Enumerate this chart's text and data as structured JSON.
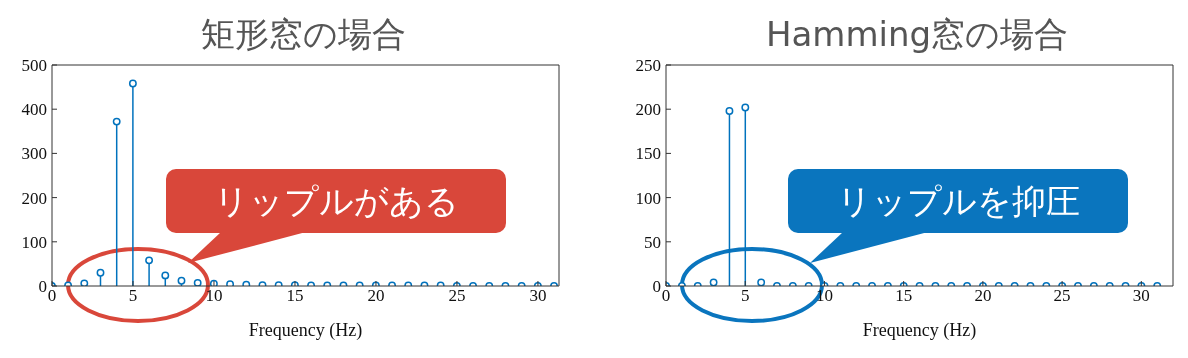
{
  "chart_data": [
    {
      "type": "lollipop",
      "title": "矩形窓の場合",
      "xlabel": "Frequency (Hz)",
      "marker": "circle",
      "x": [
        0,
        1,
        2,
        3,
        4,
        5,
        6,
        7,
        8,
        9,
        10,
        11,
        12,
        13,
        14,
        15,
        16,
        17,
        18,
        19,
        20,
        21,
        22,
        23,
        24,
        25,
        26,
        27,
        28,
        29,
        30,
        31
      ],
      "series": [
        {
          "color": "#0072bd",
          "values": [
            0,
            1,
            6,
            30,
            372,
            458,
            58,
            24,
            12,
            7,
            5,
            4,
            3,
            2,
            2,
            2,
            1,
            1,
            1,
            1,
            1,
            1,
            1,
            1,
            1,
            0,
            0,
            0,
            0,
            0,
            0,
            0
          ]
        }
      ],
      "xlim": [
        0,
        31.3
      ],
      "xticks": [
        0,
        5,
        10,
        15,
        20,
        25,
        30
      ],
      "ylim": [
        0,
        500
      ],
      "yticks": [
        0,
        100,
        200,
        300,
        400,
        500
      ],
      "annotations": [
        "リップルがある"
      ]
    },
    {
      "type": "lollipop",
      "title": "Hamming窓の場合",
      "xlabel": "Frequency (Hz)",
      "marker": "circle",
      "x": [
        0,
        1,
        2,
        3,
        4,
        5,
        6,
        7,
        8,
        9,
        10,
        11,
        12,
        13,
        14,
        15,
        16,
        17,
        18,
        19,
        20,
        21,
        22,
        23,
        24,
        25,
        26,
        27,
        28,
        29,
        30,
        31
      ],
      "series": [
        {
          "color": "#0072bd",
          "values": [
            0,
            0,
            0,
            4,
            198,
            202,
            4,
            0,
            0,
            0,
            0,
            0,
            0,
            0,
            0,
            0,
            0,
            0,
            0,
            0,
            0,
            0,
            0,
            0,
            0,
            0,
            0,
            0,
            0,
            0,
            0,
            0
          ]
        }
      ],
      "xlim": [
        0,
        32
      ],
      "xticks": [
        0,
        5,
        10,
        15,
        20,
        25,
        30
      ],
      "ylim": [
        0,
        250
      ],
      "yticks": [
        0,
        50,
        100,
        150,
        200,
        250
      ],
      "annotations": [
        "リップルを抑圧"
      ]
    }
  ]
}
